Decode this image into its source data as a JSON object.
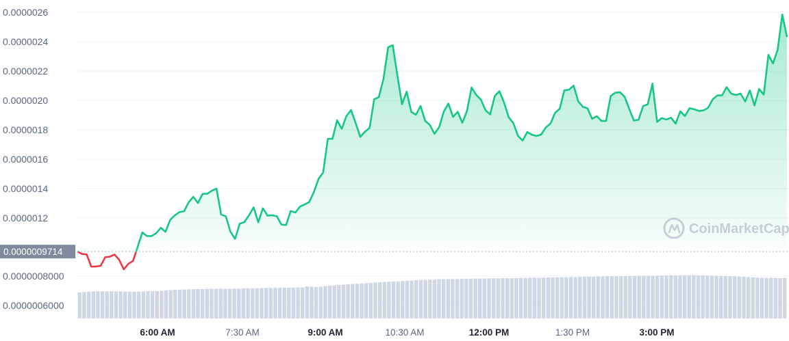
{
  "chart_data": {
    "type": "area",
    "x_ticks": [
      "6:00 AM",
      "7:30 AM",
      "9:00 AM",
      "10:30 AM",
      "12:00 PM",
      "1:30 PM",
      "3:00 PM"
    ],
    "x_ticks_major": [
      "6:00 AM",
      "9:00 AM",
      "12:00 PM",
      "3:00 PM"
    ],
    "y_ticks": [
      "0.0000006000",
      "0.0000008000",
      "0.0000012",
      "0.0000014",
      "0.0000016",
      "0.0000018",
      "0.0000020",
      "0.0000022",
      "0.0000024",
      "0.0000026"
    ],
    "baseline_label": "0.0000009714",
    "baseline_value": 9.714e-07,
    "up_color": "#16c784",
    "down_color": "#ea3943",
    "volume_color": "#cfd6e4",
    "watermark": "CoinMarketCap",
    "price": [
      9.72e-07,
      9.55e-07,
      9.52e-07,
      8.69e-07,
      8.7e-07,
      8.74e-07,
      9.33e-07,
      9.37e-07,
      9.51e-07,
      9.16e-07,
      8.51e-07,
      8.88e-07,
      9.08e-07,
      1.004e-06,
      1.102e-06,
      1.077e-06,
      1.077e-06,
      1.097e-06,
      1.133e-06,
      1.106e-06,
      1.187e-06,
      1.218e-06,
      1.24e-06,
      1.246e-06,
      1.307e-06,
      1.344e-06,
      1.302e-06,
      1.364e-06,
      1.365e-06,
      1.386e-06,
      1.4e-06,
      1.223e-06,
      1.212e-06,
      1.107e-06,
      1.058e-06,
      1.161e-06,
      1.172e-06,
      1.218e-06,
      1.272e-06,
      1.171e-06,
      1.266e-06,
      1.216e-06,
      1.218e-06,
      1.212e-06,
      1.155e-06,
      1.152e-06,
      1.248e-06,
      1.237e-06,
      1.278e-06,
      1.292e-06,
      1.309e-06,
      1.377e-06,
      1.466e-06,
      1.51e-06,
      1.739e-06,
      1.739e-06,
      1.865e-06,
      1.807e-06,
      1.893e-06,
      1.935e-06,
      1.847e-06,
      1.752e-06,
      1.787e-06,
      1.813e-06,
      2.008e-06,
      2.023e-06,
      2.146e-06,
      2.362e-06,
      2.376e-06,
      2.17e-06,
      1.974e-06,
      2.06e-06,
      1.922e-06,
      1.903e-06,
      1.962e-06,
      1.86e-06,
      1.834e-06,
      1.773e-06,
      1.818e-06,
      1.924e-06,
      1.979e-06,
      1.888e-06,
      1.923e-06,
      1.848e-06,
      1.928e-06,
      2.088e-06,
      2.038e-06,
      2.006e-06,
      1.934e-06,
      1.905e-06,
      2.03e-06,
      2.063e-06,
      1.986e-06,
      1.886e-06,
      1.846e-06,
      1.76e-06,
      1.727e-06,
      1.785e-06,
      1.767e-06,
      1.758e-06,
      1.768e-06,
      1.816e-06,
      1.842e-06,
      1.916e-06,
      1.943e-06,
      2.069e-06,
      2.073e-06,
      2.101e-06,
      1.994e-06,
      1.957e-06,
      1.946e-06,
      1.875e-06,
      1.893e-06,
      1.861e-06,
      1.861e-06,
      2.031e-06,
      2.053e-06,
      2.056e-06,
      2.025e-06,
      1.942e-06,
      1.863e-06,
      1.869e-06,
      1.962e-06,
      1.974e-06,
      2.115e-06,
      1.854e-06,
      1.88e-06,
      1.87e-06,
      1.883e-06,
      1.842e-06,
      1.926e-06,
      1.894e-06,
      1.947e-06,
      1.94e-06,
      1.929e-06,
      1.932e-06,
      1.95e-06,
      2.008e-06,
      2.034e-06,
      2.035e-06,
      2.09e-06,
      2.046e-06,
      2.037e-06,
      2.047e-06,
      1.993e-06,
      2.068e-06,
      1.966e-06,
      2.078e-06,
      2.04e-06,
      2.31e-06,
      2.252e-06,
      2.346e-06,
      2.585e-06,
      2.432e-06
    ],
    "volume_scale": [
      0.6,
      0.9
    ],
    "volume": [
      0.69,
      0.692,
      0.694,
      0.695,
      0.696,
      0.697,
      0.697,
      0.696,
      0.696,
      0.695,
      0.695,
      0.694,
      0.694,
      0.695,
      0.696,
      0.697,
      0.698,
      0.698,
      0.7,
      0.703,
      0.705,
      0.707,
      0.708,
      0.709,
      0.71,
      0.711,
      0.712,
      0.712,
      0.713,
      0.713,
      0.714,
      0.714,
      0.714,
      0.714,
      0.715,
      0.715,
      0.716,
      0.717,
      0.717,
      0.718,
      0.718,
      0.719,
      0.72,
      0.72,
      0.72,
      0.721,
      0.721,
      0.722,
      0.723,
      0.723,
      0.73,
      0.728,
      0.726,
      0.728,
      0.732,
      0.735,
      0.738,
      0.74,
      0.742,
      0.744,
      0.746,
      0.748,
      0.75,
      0.752,
      0.754,
      0.756,
      0.758,
      0.76,
      0.762,
      0.764,
      0.765,
      0.766,
      0.768,
      0.77,
      0.772,
      0.774,
      0.775,
      0.776,
      0.777,
      0.778,
      0.779,
      0.779,
      0.78,
      0.78,
      0.781,
      0.782,
      0.782,
      0.783,
      0.783,
      0.784,
      0.784,
      0.785,
      0.785,
      0.786,
      0.786,
      0.786,
      0.787,
      0.787,
      0.788,
      0.788,
      0.789,
      0.789,
      0.79,
      0.79,
      0.791,
      0.791,
      0.792,
      0.792,
      0.793,
      0.793,
      0.794,
      0.795,
      0.795,
      0.796,
      0.797,
      0.797,
      0.798,
      0.799,
      0.799,
      0.8,
      0.8,
      0.801,
      0.801,
      0.802,
      0.802,
      0.803,
      0.803,
      0.804,
      0.804,
      0.805,
      0.805,
      0.805,
      0.806,
      0.806,
      0.806,
      0.806,
      0.805,
      0.805,
      0.804,
      0.803,
      0.802,
      0.801,
      0.8,
      0.799,
      0.798,
      0.796,
      0.795,
      0.793,
      0.791,
      0.79,
      0.789,
      0.788,
      0.788,
      0.787,
      0.787,
      0.787
    ]
  }
}
